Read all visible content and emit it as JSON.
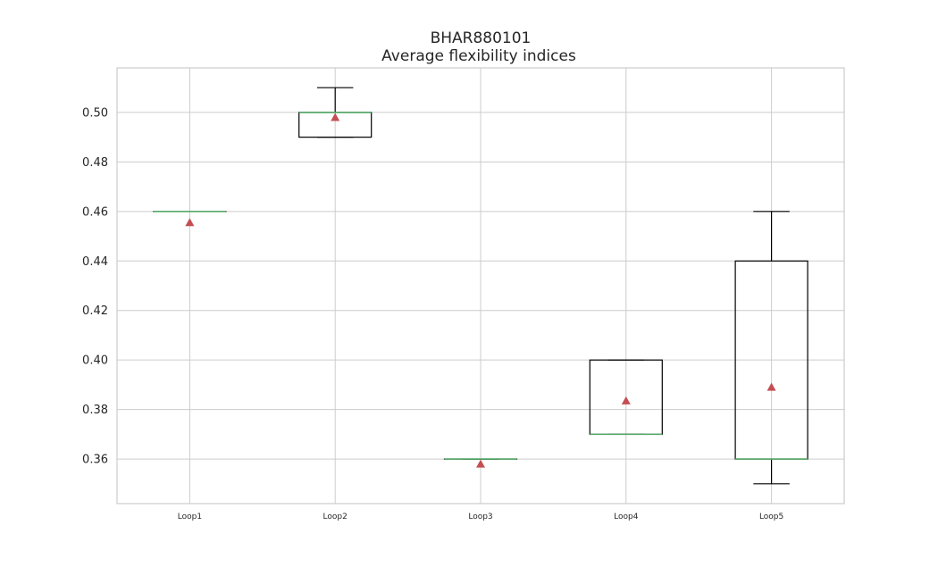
{
  "chart_data": {
    "type": "box",
    "title": "BHAR880101",
    "subtitle": "Average flexibility indices",
    "xlabel": "",
    "ylabel": "",
    "ylim": [
      0.342,
      0.518
    ],
    "yticks": [
      0.36,
      0.38,
      0.4,
      0.42,
      0.44,
      0.46,
      0.48,
      0.5
    ],
    "ytick_labels": [
      "0.36",
      "0.38",
      "0.40",
      "0.42",
      "0.44",
      "0.46",
      "0.48",
      "0.50"
    ],
    "grid": true,
    "categories": [
      "Loop1",
      "Loop2",
      "Loop3",
      "Loop4",
      "Loop5"
    ],
    "boxes": [
      {
        "whisker_low": 0.46,
        "q1": 0.46,
        "median": 0.46,
        "q3": 0.46,
        "whisker_high": 0.46,
        "mean": 0.4555
      },
      {
        "whisker_low": 0.49,
        "q1": 0.49,
        "median": 0.5,
        "q3": 0.5,
        "whisker_high": 0.51,
        "mean": 0.498
      },
      {
        "whisker_low": 0.36,
        "q1": 0.36,
        "median": 0.36,
        "q3": 0.36,
        "whisker_high": 0.36,
        "mean": 0.358
      },
      {
        "whisker_low": 0.37,
        "q1": 0.37,
        "median": 0.37,
        "q3": 0.4,
        "whisker_high": 0.4,
        "mean": 0.3835
      },
      {
        "whisker_low": 0.35,
        "q1": 0.36,
        "median": 0.36,
        "q3": 0.44,
        "whisker_high": 0.46,
        "mean": 0.389
      }
    ],
    "colors": {
      "box": "#000000",
      "median": "#55a868",
      "mean_marker": "#c44e52",
      "grid": "#cccccc",
      "frame": "#cccccc"
    }
  }
}
